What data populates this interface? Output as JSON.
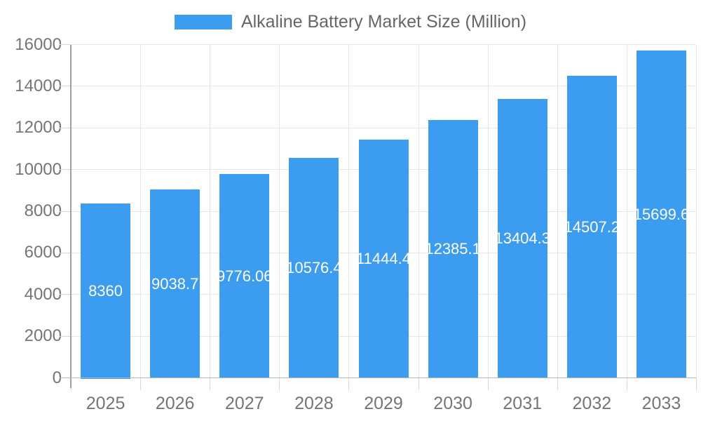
{
  "chart_data": {
    "type": "bar",
    "title": "Alkaline Battery Market Size (Million)",
    "categories": [
      "2025",
      "2026",
      "2027",
      "2028",
      "2029",
      "2030",
      "2031",
      "2032",
      "2033"
    ],
    "values": [
      8360,
      9038.7,
      9776.06,
      10576.4,
      11444.4,
      12385.1,
      13404.3,
      14507.2,
      15699.6
    ],
    "value_labels": [
      "8360",
      "9038.7",
      "9776.06",
      "10576.4",
      "11444.4",
      "12385.1",
      "13404.3",
      "14507.2",
      "15699.6"
    ],
    "xlabel": "",
    "ylabel": "",
    "ylim": [
      0,
      16000
    ],
    "ytick_step": 2000,
    "ytick_labels": [
      "0",
      "2000",
      "4000",
      "6000",
      "8000",
      "10000",
      "12000",
      "14000",
      "16000"
    ],
    "grid": true,
    "legend_position": "top-center"
  },
  "colors": {
    "bar": "#3B9CF0",
    "grid": "#E6E6E6",
    "y_axis_line": "#9E9E9E",
    "x_axis_line": "#B5B5B5",
    "tick": "#D8D8D8",
    "axis_label": "#757575",
    "legend_text": "#666666",
    "value_label": "#FFFFFF",
    "background": "#FFFFFF"
  }
}
